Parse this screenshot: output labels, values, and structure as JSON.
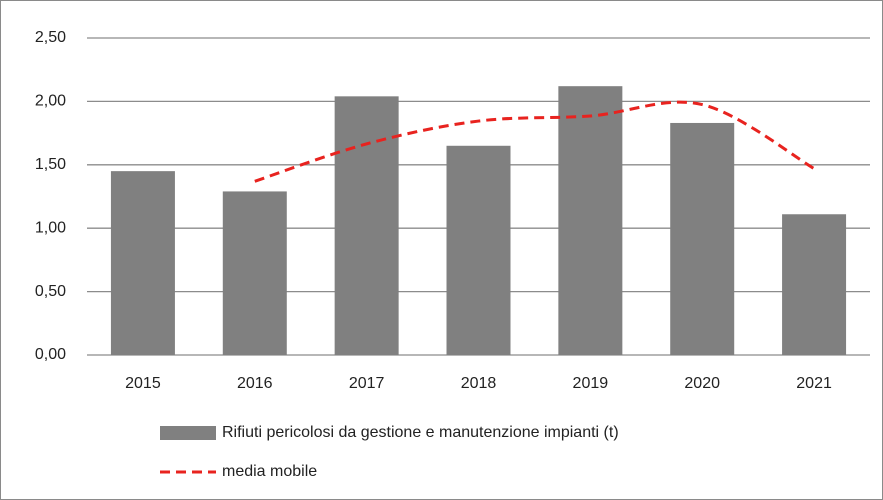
{
  "chart_data": {
    "type": "bar",
    "categories": [
      "2015",
      "2016",
      "2017",
      "2018",
      "2019",
      "2020",
      "2021"
    ],
    "series": [
      {
        "name": "Rifiuti pericolosi da gestione e manutenzione impianti (t)",
        "type": "bar",
        "color": "#808080",
        "values": [
          1.45,
          1.29,
          2.04,
          1.65,
          2.12,
          1.83,
          1.11
        ]
      },
      {
        "name": "media mobile",
        "type": "line",
        "color": "#e8231f",
        "dashed": true,
        "values": [
          null,
          1.37,
          1.665,
          1.845,
          1.885,
          1.975,
          1.47
        ]
      }
    ],
    "ylim": [
      0,
      2.5
    ],
    "yticks": [
      {
        "value": 0,
        "label": "0,00"
      },
      {
        "value": 0.5,
        "label": "0,50"
      },
      {
        "value": 1,
        "label": "1,00"
      },
      {
        "value": 1.5,
        "label": "1,50"
      },
      {
        "value": 2,
        "label": "2,00"
      },
      {
        "value": 2.5,
        "label": "2,50"
      }
    ],
    "grid": true,
    "legend": "bottom"
  }
}
